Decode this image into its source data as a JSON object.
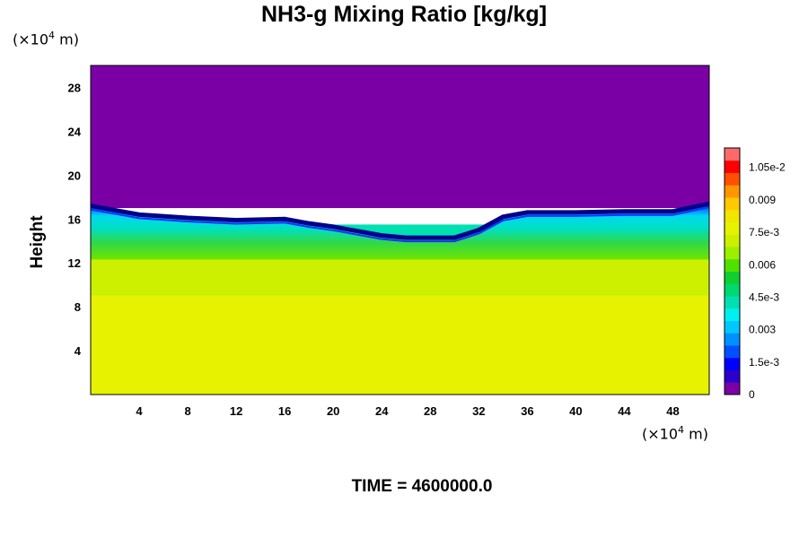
{
  "chart_data": {
    "type": "heatmap",
    "title": "NH3-g Mixing Ratio [kg/kg]",
    "ylabel": "Height",
    "xlabel": "",
    "x_unit": "(×10⁴ m)",
    "y_unit": "(×10⁴ m)",
    "unit_prefix": "(×10",
    "unit_exp": "4",
    "unit_suffix": " m)",
    "footer": "TIME = 4600000.0",
    "xlim": [
      0,
      51
    ],
    "ylim": [
      0,
      30
    ],
    "x_ticks": [
      4,
      8,
      12,
      16,
      20,
      24,
      28,
      32,
      36,
      40,
      44,
      48
    ],
    "y_ticks": [
      4,
      8,
      12,
      16,
      20,
      24,
      28
    ],
    "colorbar": {
      "min": 0,
      "max": 0.0114,
      "ticks": [
        {
          "value": 0,
          "label": "0"
        },
        {
          "value": 0.0015,
          "label": "1.5e-3"
        },
        {
          "value": 0.003,
          "label": "0.003"
        },
        {
          "value": 0.0045,
          "label": "4.5e-3"
        },
        {
          "value": 0.006,
          "label": "0.006"
        },
        {
          "value": 0.0075,
          "label": "7.5e-3"
        },
        {
          "value": 0.009,
          "label": "0.009"
        },
        {
          "value": 0.0105,
          "label": "1.05e-2"
        }
      ],
      "colors": [
        "#7a00a6",
        "#2b00c8",
        "#0000ff",
        "#0050ff",
        "#0090ff",
        "#00c8ff",
        "#00f0f0",
        "#00e0b0",
        "#00d870",
        "#10d030",
        "#50e000",
        "#9af000",
        "#ccf000",
        "#e6f200",
        "#f0e600",
        "#ffc800",
        "#ff9600",
        "#ff5000",
        "#ff0000",
        "#ff6a6a"
      ]
    },
    "layers": [
      {
        "name": "lower",
        "y_range": [
          0,
          9
        ],
        "value": 0.0077
      },
      {
        "name": "mid",
        "y_range": [
          9,
          12.5
        ],
        "value": 0.0069
      },
      {
        "name": "cloud",
        "y_range": [
          12.5,
          15.5
        ],
        "value": 0.004
      },
      {
        "name": "upper",
        "y_range": [
          17,
          30
        ],
        "value": 0
      }
    ],
    "cloud_top_height": [
      [
        0,
        17.2
      ],
      [
        4,
        16.4
      ],
      [
        8,
        16.1
      ],
      [
        12,
        15.9
      ],
      [
        16,
        16.0
      ],
      [
        18,
        15.6
      ],
      [
        20,
        15.3
      ],
      [
        22,
        14.9
      ],
      [
        24,
        14.5
      ],
      [
        26,
        14.3
      ],
      [
        28,
        14.3
      ],
      [
        30,
        14.3
      ],
      [
        32,
        15.0
      ],
      [
        34,
        16.2
      ],
      [
        36,
        16.6
      ],
      [
        40,
        16.6
      ],
      [
        44,
        16.7
      ],
      [
        48,
        16.7
      ],
      [
        51,
        17.4
      ]
    ]
  }
}
